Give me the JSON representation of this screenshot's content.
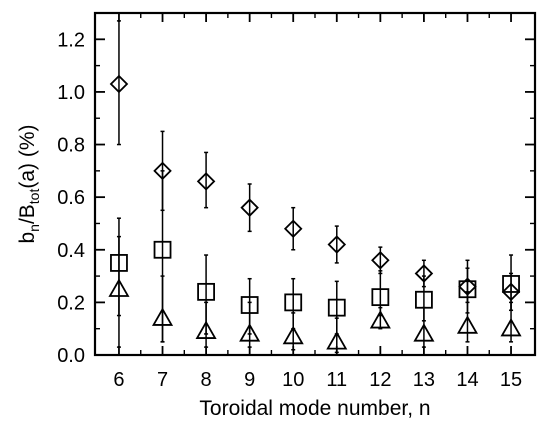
{
  "chart_data": {
    "type": "scatter",
    "xlabel": "Toroidal mode number, n",
    "ylabel_parts": {
      "b": "b",
      "n": "n",
      "slash": "/B",
      "tot": "tot",
      "rest": "(a) (%)"
    },
    "x_ticks": [
      6,
      7,
      8,
      9,
      10,
      11,
      12,
      13,
      14,
      15
    ],
    "y_ticks": [
      "0.0",
      "0.2",
      "0.4",
      "0.6",
      "0.8",
      "1.0",
      "1.2"
    ],
    "xlim": [
      5.45,
      15.55
    ],
    "ylim": [
      0,
      1.3
    ],
    "grid": false,
    "series": [
      {
        "marker": "diamond",
        "x": [
          6,
          7,
          8,
          9,
          10,
          11,
          12,
          13,
          14,
          15
        ],
        "y": [
          1.03,
          0.7,
          0.66,
          0.56,
          0.48,
          0.42,
          0.36,
          0.31,
          0.26,
          0.24
        ],
        "err_low": [
          0.8,
          0.55,
          0.56,
          0.47,
          0.4,
          0.35,
          0.31,
          0.26,
          0.2,
          0.17
        ],
        "err_high": [
          1.27,
          0.85,
          0.77,
          0.65,
          0.56,
          0.49,
          0.41,
          0.36,
          0.33,
          0.31
        ]
      },
      {
        "marker": "square",
        "x": [
          6,
          7,
          8,
          9,
          10,
          11,
          12,
          13,
          14,
          15
        ],
        "y": [
          0.35,
          0.4,
          0.24,
          0.19,
          0.2,
          0.18,
          0.22,
          0.21,
          0.25,
          0.27
        ],
        "err_low": [
          0.15,
          0.05,
          0.08,
          0.08,
          0.1,
          0.08,
          0.15,
          0.13,
          0.16,
          0.17
        ],
        "err_high": [
          0.52,
          0.7,
          0.38,
          0.29,
          0.29,
          0.28,
          0.32,
          0.3,
          0.36,
          0.38
        ]
      },
      {
        "marker": "triangle",
        "x": [
          6,
          7,
          8,
          9,
          10,
          11,
          12,
          13,
          14,
          15
        ],
        "y": [
          0.25,
          0.14,
          0.09,
          0.08,
          0.07,
          0.05,
          0.13,
          0.08,
          0.11,
          0.1
        ],
        "err_low": [
          0.03,
          0.05,
          0.03,
          0.03,
          0.02,
          0.01,
          0.1,
          0.03,
          0.05,
          0.05
        ],
        "err_high": [
          0.45,
          0.3,
          0.2,
          0.2,
          0.16,
          0.14,
          0.18,
          0.18,
          0.24,
          0.2
        ]
      }
    ]
  }
}
